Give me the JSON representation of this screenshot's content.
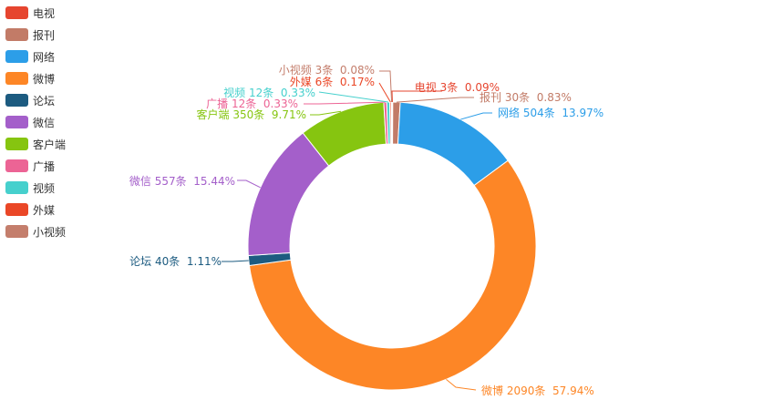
{
  "chart_data": {
    "type": "pie",
    "variant": "donut",
    "legend_position": "top-left",
    "series": [
      {
        "name": "电视",
        "count": 3,
        "unit": "条",
        "percent": 0.09,
        "percent_label": "0.09%",
        "color": "#E6452F"
      },
      {
        "name": "报刊",
        "count": 30,
        "unit": "条",
        "percent": 0.83,
        "percent_label": "0.83%",
        "color": "#C27B67"
      },
      {
        "name": "网络",
        "count": 504,
        "unit": "条",
        "percent": 13.97,
        "percent_label": "13.97%",
        "color": "#2C9EE8"
      },
      {
        "name": "微博",
        "count": 2090,
        "unit": "条",
        "percent": 57.94,
        "percent_label": "57.94%",
        "color": "#FD8626"
      },
      {
        "name": "论坛",
        "count": 40,
        "unit": "条",
        "percent": 1.11,
        "percent_label": "1.11%",
        "color": "#1C5B80"
      },
      {
        "name": "微信",
        "count": 557,
        "unit": "条",
        "percent": 15.44,
        "percent_label": "15.44%",
        "color": "#A45FCA"
      },
      {
        "name": "客户端",
        "count": 350,
        "unit": "条",
        "percent": 9.71,
        "percent_label": "9.71%",
        "color": "#86C510"
      },
      {
        "name": "广播",
        "count": 12,
        "unit": "条",
        "percent": 0.33,
        "percent_label": "0.33%",
        "color": "#EC6495"
      },
      {
        "name": "视频",
        "count": 12,
        "unit": "条",
        "percent": 0.33,
        "percent_label": "0.33%",
        "color": "#46D0CD"
      },
      {
        "name": "外媒",
        "count": 6,
        "unit": "条",
        "percent": 0.17,
        "percent_label": "0.17%",
        "color": "#EA4727"
      },
      {
        "name": "小视频",
        "count": 3,
        "unit": "条",
        "percent": 0.08,
        "percent_label": "0.08%",
        "color": "#C47E6C"
      }
    ]
  }
}
